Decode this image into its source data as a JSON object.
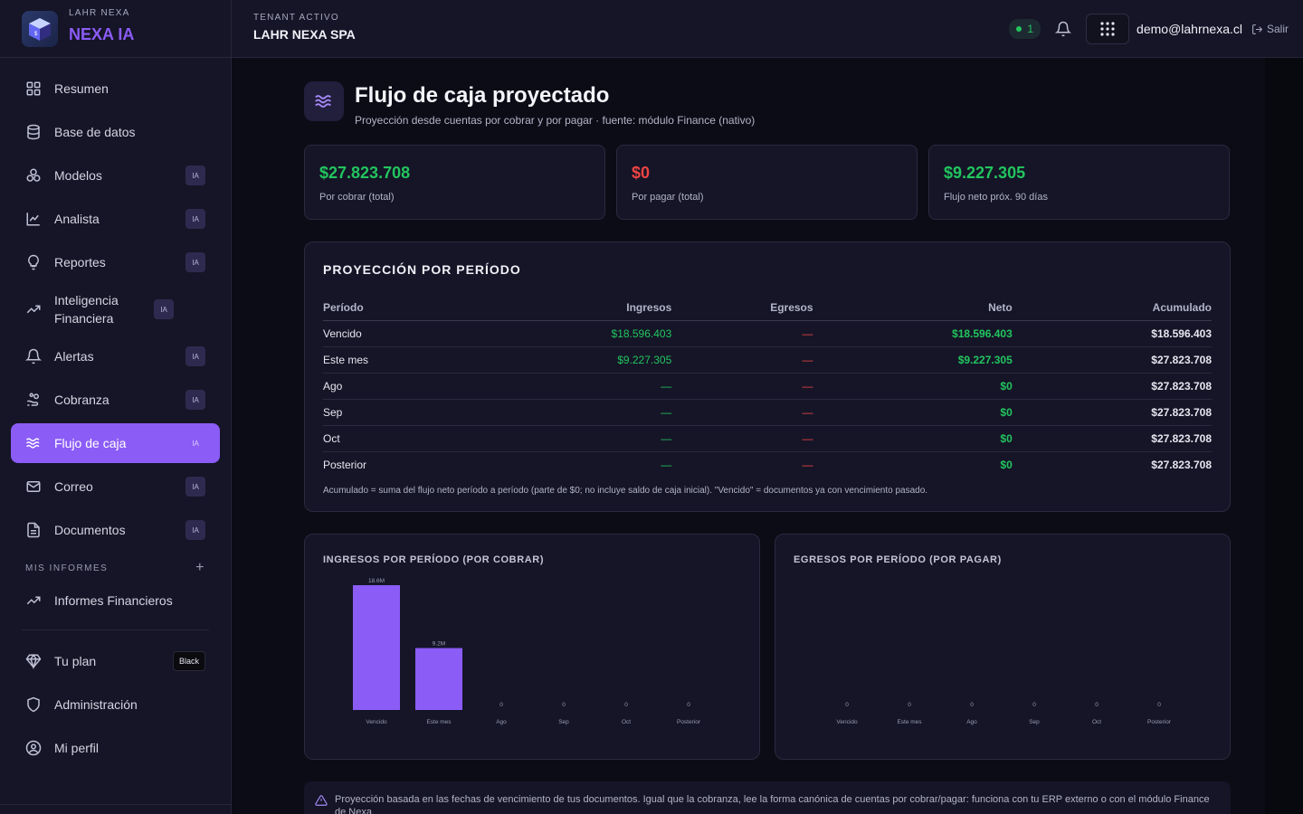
{
  "brand": {
    "small": "LAHR NEXA",
    "name": "NEXA IA"
  },
  "topbar": {
    "tenant_label": "TENANT ACTIVO",
    "tenant_name": "LAHR NEXA SPA",
    "notif_count": "1",
    "email": "demo@lahrnexa.cl",
    "logout": "Salir"
  },
  "sidebar": {
    "items": [
      {
        "label": "Resumen",
        "icon": "grid-icon",
        "badge": ""
      },
      {
        "label": "Base de datos",
        "icon": "database-icon",
        "badge": ""
      },
      {
        "label": "Modelos",
        "icon": "models-icon",
        "badge": "IA"
      },
      {
        "label": "Analista",
        "icon": "chart-line-icon",
        "badge": "IA"
      },
      {
        "label": "Reportes",
        "icon": "lightbulb-icon",
        "badge": "IA"
      },
      {
        "label": "Inteligencia Financiera",
        "icon": "trending-up-icon",
        "badge": "IA"
      },
      {
        "label": "Alertas",
        "icon": "bell-icon",
        "badge": "IA"
      },
      {
        "label": "Cobranza",
        "icon": "hand-coins-icon",
        "badge": "IA"
      },
      {
        "label": "Flujo de caja",
        "icon": "waves-icon",
        "badge": "IA"
      },
      {
        "label": "Correo",
        "icon": "mail-icon",
        "badge": "IA"
      },
      {
        "label": "Documentos",
        "icon": "file-icon",
        "badge": "IA"
      }
    ],
    "reports_section": "MIS INFORMES",
    "reports_item": "Informes Financieros",
    "plan_label": "Tu plan",
    "plan_badge": "Black",
    "admin_label": "Administración",
    "profile_label": "Mi perfil"
  },
  "page": {
    "title": "Flujo de caja proyectado",
    "subtitle": "Proyección desde cuentas por cobrar y por pagar · fuente: módulo Finance (nativo)"
  },
  "kpis": [
    {
      "value": "$27.823.708",
      "label": "Por cobrar (total)",
      "color": "#22c55e"
    },
    {
      "value": "$0",
      "label": "Por pagar (total)",
      "color": "#ef4444"
    },
    {
      "value": "$9.227.305",
      "label": "Flujo neto próx. 90 días",
      "color": "#22c55e"
    }
  ],
  "projection": {
    "title": "PROYECCIÓN POR PERÍODO",
    "headers": [
      "Período",
      "Ingresos",
      "Egresos",
      "Neto",
      "Acumulado"
    ],
    "rows": [
      [
        "Vencido",
        "$18.596.403",
        "—",
        "$18.596.403",
        "$18.596.403"
      ],
      [
        "Este mes",
        "$9.227.305",
        "—",
        "$9.227.305",
        "$27.823.708"
      ],
      [
        "Ago",
        "—",
        "—",
        "$0",
        "$27.823.708"
      ],
      [
        "Sep",
        "—",
        "—",
        "$0",
        "$27.823.708"
      ],
      [
        "Oct",
        "—",
        "—",
        "$0",
        "$27.823.708"
      ],
      [
        "Posterior",
        "—",
        "—",
        "$0",
        "$27.823.708"
      ]
    ],
    "note": "Acumulado = suma del flujo neto período a período (parte de $0; no incluye saldo de caja inicial). \"Vencido\" = documentos ya con vencimiento pasado."
  },
  "chart_data": [
    {
      "type": "bar",
      "title": "INGRESOS POR PERÍODO (POR COBRAR)",
      "categories": [
        "Vencido",
        "Este mes",
        "Ago",
        "Sep",
        "Oct",
        "Posterior"
      ],
      "values": [
        18596403,
        9227305,
        0,
        0,
        0,
        0
      ],
      "data_labels": [
        "18.6M",
        "9.2M",
        "0",
        "0",
        "0",
        "0"
      ],
      "color": "#8b5cf6",
      "ylim": [
        0,
        18596403
      ]
    },
    {
      "type": "bar",
      "title": "EGRESOS POR PERÍODO (POR PAGAR)",
      "categories": [
        "Vencido",
        "Este mes",
        "Ago",
        "Sep",
        "Oct",
        "Posterior"
      ],
      "values": [
        0,
        0,
        0,
        0,
        0,
        0
      ],
      "data_labels": [
        "0",
        "0",
        "0",
        "0",
        "0",
        "0"
      ],
      "color": "#ef4444"
    }
  ],
  "info_text": "Proyección basada en las fechas de vencimiento de tus documentos. Igual que la cobranza, lee la forma canónica de cuentas por cobrar/pagar: funciona con tu ERP externo o con el módulo Finance de Nexa."
}
